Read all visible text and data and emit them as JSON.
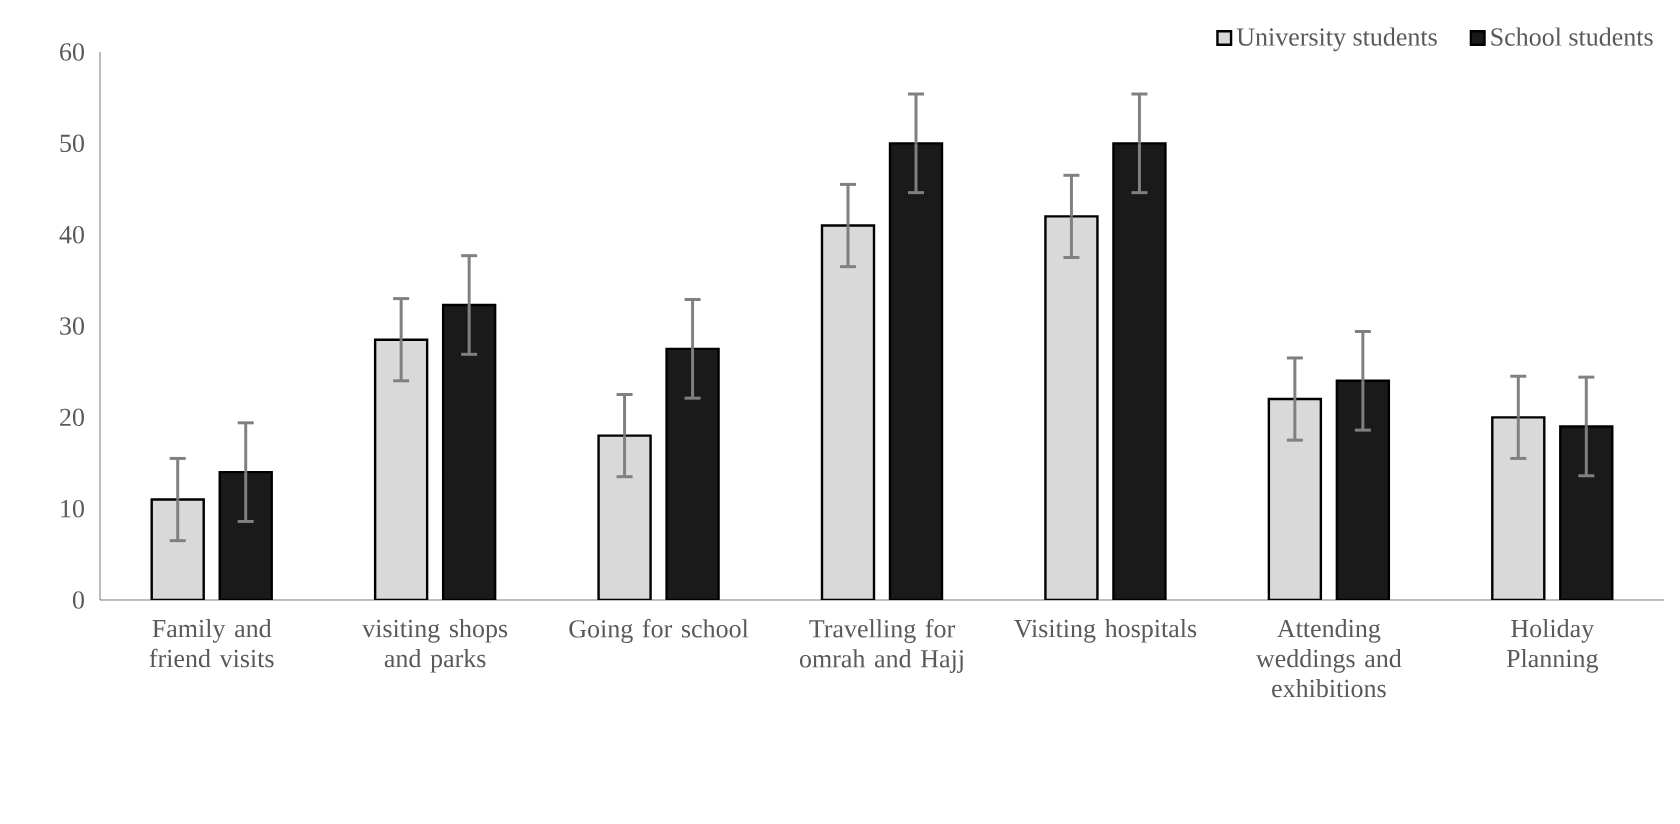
{
  "chart_data": {
    "type": "bar",
    "categories": [
      "Family and friend visits",
      "visiting shops and parks",
      "Going for school",
      "Travelling for omrah and Hajj",
      "Visiting hospitals",
      "Attending weddings and exhibitions",
      "Holiday Planning"
    ],
    "series": [
      {
        "name": "University students",
        "color": "#d9d9d9",
        "values": [
          11,
          28.5,
          18,
          41,
          42,
          22,
          20
        ],
        "errors": [
          4.5,
          4.5,
          4.5,
          4.5,
          4.5,
          4.5,
          4.5
        ]
      },
      {
        "name": "School students",
        "color": "#1a1a1a",
        "values": [
          14,
          32.3,
          27.5,
          50,
          50,
          24,
          19
        ],
        "errors": [
          5.4,
          5.4,
          5.4,
          5.4,
          5.4,
          5.4,
          5.4
        ]
      }
    ],
    "ylim": [
      0,
      60
    ],
    "yticks": [
      0,
      10,
      20,
      30,
      40,
      50,
      60
    ],
    "legend": "top right",
    "grid": false
  }
}
